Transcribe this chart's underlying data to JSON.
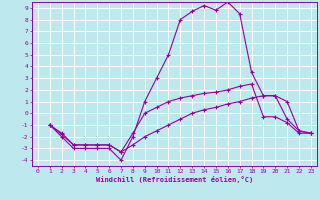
{
  "xlabel": "Windchill (Refroidissement éolien,°C)",
  "bg_color": "#bde8ee",
  "line_color": "#990099",
  "grid_color": "#ffffff",
  "xlim": [
    -0.5,
    23.5
  ],
  "ylim": [
    -4.5,
    9.5
  ],
  "xticks": [
    0,
    1,
    2,
    3,
    4,
    5,
    6,
    7,
    8,
    9,
    10,
    11,
    12,
    13,
    14,
    15,
    16,
    17,
    18,
    19,
    20,
    21,
    22,
    23
  ],
  "yticks": [
    -4,
    -3,
    -2,
    -1,
    0,
    1,
    2,
    3,
    4,
    5,
    6,
    7,
    8,
    9
  ],
  "line1_x": [
    1,
    2,
    3,
    4,
    5,
    6,
    7,
    8,
    9,
    10,
    11,
    12,
    13,
    14,
    15,
    16,
    17,
    18,
    19,
    20,
    21,
    22,
    23
  ],
  "line1_y": [
    -1,
    -2,
    -3,
    -3,
    -3,
    -3,
    -4,
    -2,
    1,
    3,
    5,
    8,
    8.7,
    9.2,
    8.8,
    9.5,
    8.5,
    3.5,
    1.5,
    1.5,
    1,
    -1.5,
    -1.7
  ],
  "line2_x": [
    1,
    2,
    3,
    4,
    5,
    6,
    7,
    8,
    9,
    10,
    11,
    12,
    13,
    14,
    15,
    16,
    17,
    18,
    19,
    20,
    21,
    22,
    23
  ],
  "line2_y": [
    -1,
    -1.7,
    -2.7,
    -2.7,
    -2.7,
    -2.7,
    -3.3,
    -1.7,
    0,
    0.5,
    1,
    1.3,
    1.5,
    1.7,
    1.8,
    2,
    2.3,
    2.5,
    -0.3,
    -0.3,
    -0.8,
    -1.7,
    -1.7
  ],
  "line3_x": [
    1,
    2,
    3,
    4,
    5,
    6,
    7,
    8,
    9,
    10,
    11,
    12,
    13,
    14,
    15,
    16,
    17,
    18,
    19,
    20,
    21,
    22,
    23
  ],
  "line3_y": [
    -1,
    -1.8,
    -2.7,
    -2.7,
    -2.7,
    -2.7,
    -3.3,
    -2.7,
    -2,
    -1.5,
    -1,
    -0.5,
    0,
    0.3,
    0.5,
    0.8,
    1,
    1.3,
    1.5,
    1.5,
    -0.5,
    -1.5,
    -1.7
  ]
}
